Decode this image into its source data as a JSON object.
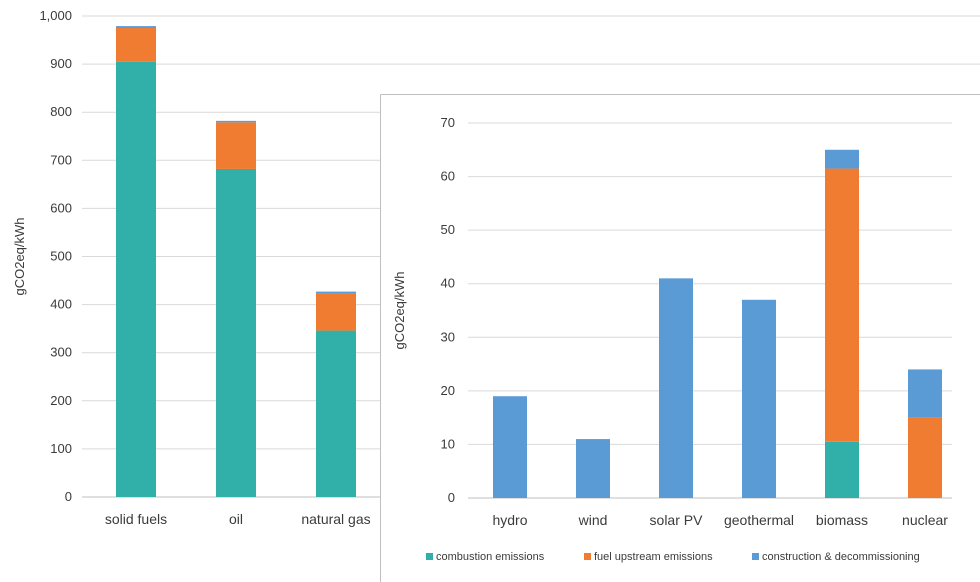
{
  "colors": {
    "combustion": "#31b0aa",
    "upstream": "#ef7c31",
    "construction": "#5b9bd5",
    "grid": "#d9d9d9",
    "axis": "#bfbfbf",
    "inset_border": "#bfbfbf",
    "text": "#3b3b3b"
  },
  "chart_data": [
    {
      "type": "bar",
      "stacked": true,
      "title": "",
      "xlabel": "",
      "ylabel": "gCO2eq/kWh",
      "ylim": [
        0,
        1000
      ],
      "y_ticks": [
        "0",
        "100",
        "200",
        "300",
        "400",
        "500",
        "600",
        "700",
        "800",
        "900",
        "1,000"
      ],
      "grid": true,
      "categories": [
        "solid fuels",
        "oil",
        "natural gas"
      ],
      "series": [
        {
          "key": "combustion",
          "values": [
            905,
            682,
            346
          ]
        },
        {
          "key": "upstream",
          "values": [
            70,
            97,
            78
          ]
        },
        {
          "key": "construction",
          "values": [
            4,
            3,
            3
          ]
        }
      ]
    },
    {
      "type": "bar",
      "stacked": true,
      "title": "",
      "xlabel": "",
      "ylabel": "gCO2eq/kWh",
      "ylim": [
        0,
        70
      ],
      "y_ticks": [
        "0",
        "10",
        "20",
        "30",
        "40",
        "50",
        "60",
        "70"
      ],
      "grid": true,
      "legend_position": "bottom",
      "categories": [
        "hydro",
        "wind",
        "solar PV",
        "geothermal",
        "biomass",
        "nuclear"
      ],
      "series": [
        {
          "key": "combustion",
          "name": "combustion emissions",
          "values": [
            0,
            0,
            0,
            0,
            10.5,
            0
          ]
        },
        {
          "key": "upstream",
          "name": "fuel upstream emissions",
          "values": [
            0,
            0,
            0,
            0,
            51,
            15
          ]
        },
        {
          "key": "construction",
          "name": "construction & decommissioning",
          "values": [
            19,
            11,
            41,
            37,
            3.5,
            9
          ]
        }
      ]
    }
  ]
}
